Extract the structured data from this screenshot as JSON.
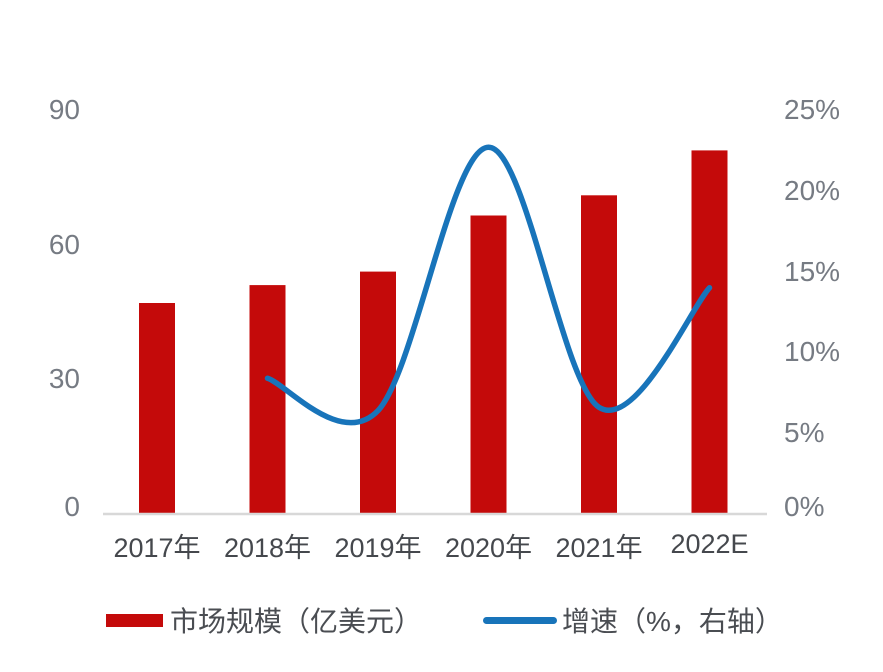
{
  "chart_data": {
    "type": "bar",
    "subtype": "combo-bar-line-dual-axis",
    "title": "",
    "categories": [
      "2017年",
      "2018年",
      "2019年",
      "2020年",
      "2021年",
      "2022E"
    ],
    "series": [
      {
        "name": "市场规模（亿美元）",
        "type": "bar",
        "axis": "left",
        "color": "#c40a0a",
        "values": [
          47,
          51,
          54,
          66.5,
          71,
          81
        ]
      },
      {
        "name": "增速（%，右轴）",
        "type": "line",
        "axis": "right",
        "color": "#1874ba",
        "values": [
          null,
          8.4,
          6.4,
          22.7,
          6.6,
          14
        ]
      }
    ],
    "left_axis": {
      "min": 0,
      "max": 90,
      "tick_values": [
        0,
        30,
        60,
        90
      ],
      "tick_labels": [
        "0",
        "30",
        "60",
        "90"
      ]
    },
    "right_axis": {
      "min": 0,
      "max": 25,
      "tick_values": [
        0,
        5,
        10,
        15,
        20,
        25
      ],
      "tick_labels": [
        "0%",
        "5%",
        "10%",
        "15%",
        "20%",
        "25%"
      ]
    },
    "grid": "off",
    "legend_position": "bottom",
    "line_smoothing": "on"
  },
  "colors": {
    "bar": "#c40a0a",
    "line": "#1874ba",
    "axis_line": "#d8d8d8",
    "left_tick_text": "#767b83",
    "right_tick_text": "#767b83",
    "category_text": "#45484d",
    "legend_text": "#4a4d52",
    "background": "#ffffff"
  }
}
